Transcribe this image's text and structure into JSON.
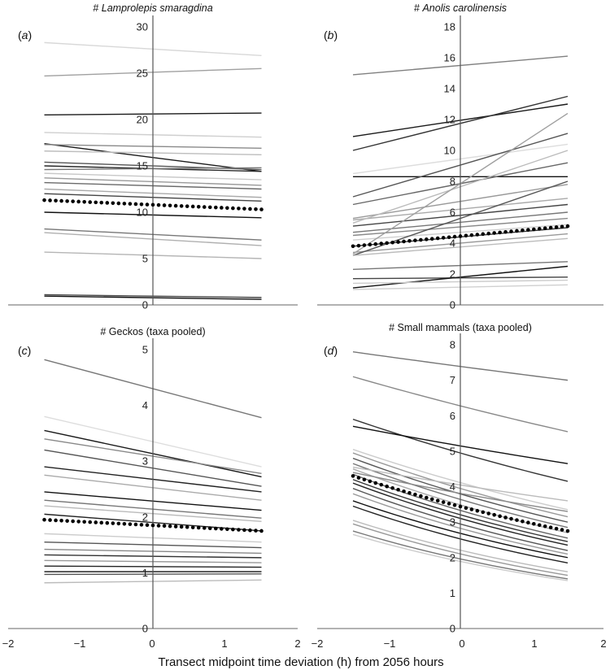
{
  "chart_data": [
    {
      "type": "line",
      "panel_label": "(a)",
      "panel_letter": "a",
      "title": "# Lamprolepis smaragdina",
      "title_prefix": "# ",
      "title_taxon": "Lamprolepis smaragdina",
      "title_italic": true,
      "xlim": [
        -2,
        2
      ],
      "ylim": [
        0,
        30
      ],
      "yticks": [
        0,
        5,
        10,
        15,
        20,
        25,
        30
      ],
      "x": [
        -1.5,
        1.5
      ],
      "series": [
        {
          "values": [
            28.3,
            26.9
          ],
          "color": "#d8d8d8"
        },
        {
          "values": [
            24.7,
            25.5
          ],
          "color": "#a0a0a0"
        },
        {
          "values": [
            20.5,
            20.7
          ],
          "color": "#1a1a1a"
        },
        {
          "values": [
            18.6,
            18.1
          ],
          "color": "#cfcfcf"
        },
        {
          "values": [
            17.4,
            14.4
          ],
          "color": "#1a1a1a"
        },
        {
          "values": [
            17.3,
            16.9
          ],
          "color": "#8a8a8a"
        },
        {
          "values": [
            16.6,
            16.2
          ],
          "color": "#bdbdbd"
        },
        {
          "values": [
            15.4,
            14.6
          ],
          "color": "#555555"
        },
        {
          "values": [
            15.0,
            14.4
          ],
          "color": "#2a2a2a"
        },
        {
          "values": [
            14.6,
            14.8
          ],
          "color": "#777777"
        },
        {
          "values": [
            14.2,
            13.5
          ],
          "color": "#c8c8c8"
        },
        {
          "values": [
            13.7,
            12.9
          ],
          "color": "#999999"
        },
        {
          "values": [
            13.2,
            12.5
          ],
          "color": "#6a6a6a"
        },
        {
          "values": [
            12.5,
            11.6
          ],
          "color": "#aaaaaa"
        },
        {
          "values": [
            12.0,
            11.2
          ],
          "color": "#444444"
        },
        {
          "values": [
            10.0,
            9.4
          ],
          "color": "#111111"
        },
        {
          "values": [
            8.2,
            7.0
          ],
          "color": "#777777"
        },
        {
          "values": [
            7.8,
            6.4
          ],
          "color": "#b0b0b0"
        },
        {
          "values": [
            5.7,
            5.0
          ],
          "color": "#b5b5b5"
        },
        {
          "values": [
            1.1,
            0.8
          ],
          "color": "#444444"
        },
        {
          "values": [
            0.95,
            0.6
          ],
          "color": "#111111"
        }
      ],
      "mean_series": {
        "values": [
          11.3,
          10.3
        ],
        "curve": "linear"
      }
    },
    {
      "type": "line",
      "panel_label": "(b)",
      "panel_letter": "b",
      "title": "# Anolis carolinensis",
      "title_prefix": "# ",
      "title_taxon": "Anolis carolinensis",
      "title_italic": true,
      "xlim": [
        -2,
        2
      ],
      "ylim": [
        0,
        18
      ],
      "yticks": [
        0,
        2,
        4,
        6,
        8,
        10,
        12,
        14,
        16,
        18
      ],
      "x": [
        -1.5,
        1.5
      ],
      "series": [
        {
          "values": [
            14.9,
            16.1
          ],
          "color": "#808080"
        },
        {
          "values": [
            10.9,
            13.0
          ],
          "color": "#1a1a1a"
        },
        {
          "values": [
            10.0,
            13.5
          ],
          "color": "#333333"
        },
        {
          "values": [
            8.3,
            8.3
          ],
          "color": "#111111"
        },
        {
          "values": [
            8.5,
            10.4
          ],
          "color": "#dddddd"
        },
        {
          "values": [
            7.0,
            11.1
          ],
          "color": "#555555"
        },
        {
          "values": [
            6.5,
            9.2
          ],
          "color": "#666666"
        },
        {
          "values": [
            5.6,
            7.8
          ],
          "color": "#999999"
        },
        {
          "values": [
            5.5,
            6.9
          ],
          "color": "#aaaaaa"
        },
        {
          "values": [
            5.3,
            10.0
          ],
          "color": "#bbbbbb"
        },
        {
          "values": [
            5.1,
            6.5
          ],
          "color": "#444444"
        },
        {
          "values": [
            4.7,
            6.0
          ],
          "color": "#777777"
        },
        {
          "values": [
            4.5,
            5.6
          ],
          "color": "#8a8a8a"
        },
        {
          "values": [
            4.2,
            5.2
          ],
          "color": "#cfcfcf"
        },
        {
          "values": [
            3.8,
            5.0
          ],
          "color": "#333333"
        },
        {
          "values": [
            3.4,
            4.6
          ],
          "color": "#999999"
        },
        {
          "values": [
            3.3,
            12.4
          ],
          "color": "#9f9f9f"
        },
        {
          "values": [
            3.2,
            8.0
          ],
          "color": "#555555"
        },
        {
          "values": [
            3.2,
            4.3
          ],
          "color": "#bcbcbc"
        },
        {
          "values": [
            2.3,
            2.8
          ],
          "color": "#777777"
        },
        {
          "values": [
            1.7,
            1.8
          ],
          "color": "#444444"
        },
        {
          "values": [
            1.1,
            2.5
          ],
          "color": "#111111"
        },
        {
          "values": [
            1.4,
            1.6
          ],
          "color": "#cccccc"
        },
        {
          "values": [
            1.0,
            1.3
          ],
          "color": "#d0d0d0"
        }
      ],
      "mean_series": {
        "values": [
          3.8,
          5.1
        ],
        "curve": "linear"
      }
    },
    {
      "type": "line",
      "panel_label": "(c)",
      "panel_letter": "c",
      "title": "# Geckos (taxa pooled)",
      "title_italic": false,
      "xlim": [
        -2,
        2
      ],
      "ylim": [
        0,
        5
      ],
      "yticks": [
        0,
        1,
        2,
        3,
        4,
        5
      ],
      "x": [
        -1.5,
        1.5
      ],
      "series": [
        {
          "values": [
            4.82,
            3.78
          ],
          "color": "#777777"
        },
        {
          "values": [
            3.8,
            2.9
          ],
          "color": "#dddddd"
        },
        {
          "values": [
            3.55,
            2.72
          ],
          "color": "#1a1a1a"
        },
        {
          "values": [
            3.4,
            2.78
          ],
          "color": "#888888"
        },
        {
          "values": [
            3.2,
            2.55
          ],
          "color": "#555555"
        },
        {
          "values": [
            2.9,
            2.45
          ],
          "color": "#222222"
        },
        {
          "values": [
            2.75,
            2.3
          ],
          "color": "#aaaaaa"
        },
        {
          "values": [
            2.45,
            2.12
          ],
          "color": "#111111"
        },
        {
          "values": [
            2.3,
            1.98
          ],
          "color": "#777777"
        },
        {
          "values": [
            2.2,
            1.92
          ],
          "color": "#bbbbbb"
        },
        {
          "values": [
            2.05,
            1.75
          ],
          "color": "#222222"
        },
        {
          "values": [
            1.7,
            1.55
          ],
          "color": "#cccccc"
        },
        {
          "values": [
            1.55,
            1.45
          ],
          "color": "#555555"
        },
        {
          "values": [
            1.42,
            1.35
          ],
          "color": "#888888"
        },
        {
          "values": [
            1.32,
            1.27
          ],
          "color": "#333333"
        },
        {
          "values": [
            1.22,
            1.18
          ],
          "color": "#999999"
        },
        {
          "values": [
            1.12,
            1.1
          ],
          "color": "#222222"
        },
        {
          "values": [
            1.02,
            1.02
          ],
          "color": "#111111"
        },
        {
          "values": [
            0.97,
            0.98
          ],
          "color": "#555555"
        },
        {
          "values": [
            0.82,
            0.87
          ],
          "color": "#bbbbbb"
        }
      ],
      "mean_series": {
        "values": [
          1.95,
          1.75
        ],
        "curve": "linear"
      }
    },
    {
      "type": "line",
      "panel_label": "(d)",
      "panel_letter": "d",
      "title": "# Small mammals (taxa pooled)",
      "title_italic": false,
      "xlim": [
        -2,
        2
      ],
      "ylim": [
        0,
        8
      ],
      "yticks": [
        0,
        1,
        2,
        3,
        4,
        5,
        6,
        7,
        8
      ],
      "x": [
        -1.5,
        1.5
      ],
      "curve": "exponential",
      "series": [
        {
          "values": [
            7.8,
            7.0
          ],
          "color": "#777777"
        },
        {
          "values": [
            7.1,
            5.55
          ],
          "color": "#888888"
        },
        {
          "values": [
            5.9,
            4.15
          ],
          "color": "#333333"
        },
        {
          "values": [
            5.7,
            4.65
          ],
          "color": "#111111"
        },
        {
          "values": [
            5.05,
            3.35
          ],
          "color": "#cccccc"
        },
        {
          "values": [
            4.95,
            3.15
          ],
          "color": "#999999"
        },
        {
          "values": [
            4.8,
            3.0
          ],
          "color": "#555555"
        },
        {
          "values": [
            4.65,
            2.85
          ],
          "color": "#777777"
        },
        {
          "values": [
            4.5,
            2.7
          ],
          "color": "#aaaaaa"
        },
        {
          "values": [
            4.35,
            2.55
          ],
          "color": "#666666"
        },
        {
          "values": [
            4.2,
            2.45
          ],
          "color": "#333333"
        },
        {
          "values": [
            4.1,
            2.35
          ],
          "color": "#222222"
        },
        {
          "values": [
            3.95,
            2.2
          ],
          "color": "#555555"
        },
        {
          "values": [
            3.8,
            2.1
          ],
          "color": "#999999"
        },
        {
          "values": [
            3.6,
            2.0
          ],
          "color": "#111111"
        },
        {
          "values": [
            3.45,
            1.85
          ],
          "color": "#222222"
        },
        {
          "values": [
            3.05,
            1.6
          ],
          "color": "#bbbbbb"
        },
        {
          "values": [
            2.95,
            1.5
          ],
          "color": "#999999"
        },
        {
          "values": [
            2.75,
            1.4
          ],
          "color": "#777777"
        },
        {
          "values": [
            2.65,
            1.35
          ],
          "color": "#cccccc"
        },
        {
          "values": [
            4.55,
            3.6
          ],
          "color": "#bbbbbb"
        },
        {
          "values": [
            4.4,
            3.3
          ],
          "color": "#8a8a8a"
        }
      ],
      "mean_series": {
        "values": [
          4.3,
          2.75
        ],
        "curve": "exponential"
      }
    }
  ],
  "xaxis": {
    "ticks": [
      -2,
      -1,
      0,
      1,
      2
    ],
    "tick_labels": [
      "−2",
      "−1",
      "0",
      "1",
      "2"
    ],
    "label": "Transect midpoint time deviation (h) from 2056 hours"
  }
}
